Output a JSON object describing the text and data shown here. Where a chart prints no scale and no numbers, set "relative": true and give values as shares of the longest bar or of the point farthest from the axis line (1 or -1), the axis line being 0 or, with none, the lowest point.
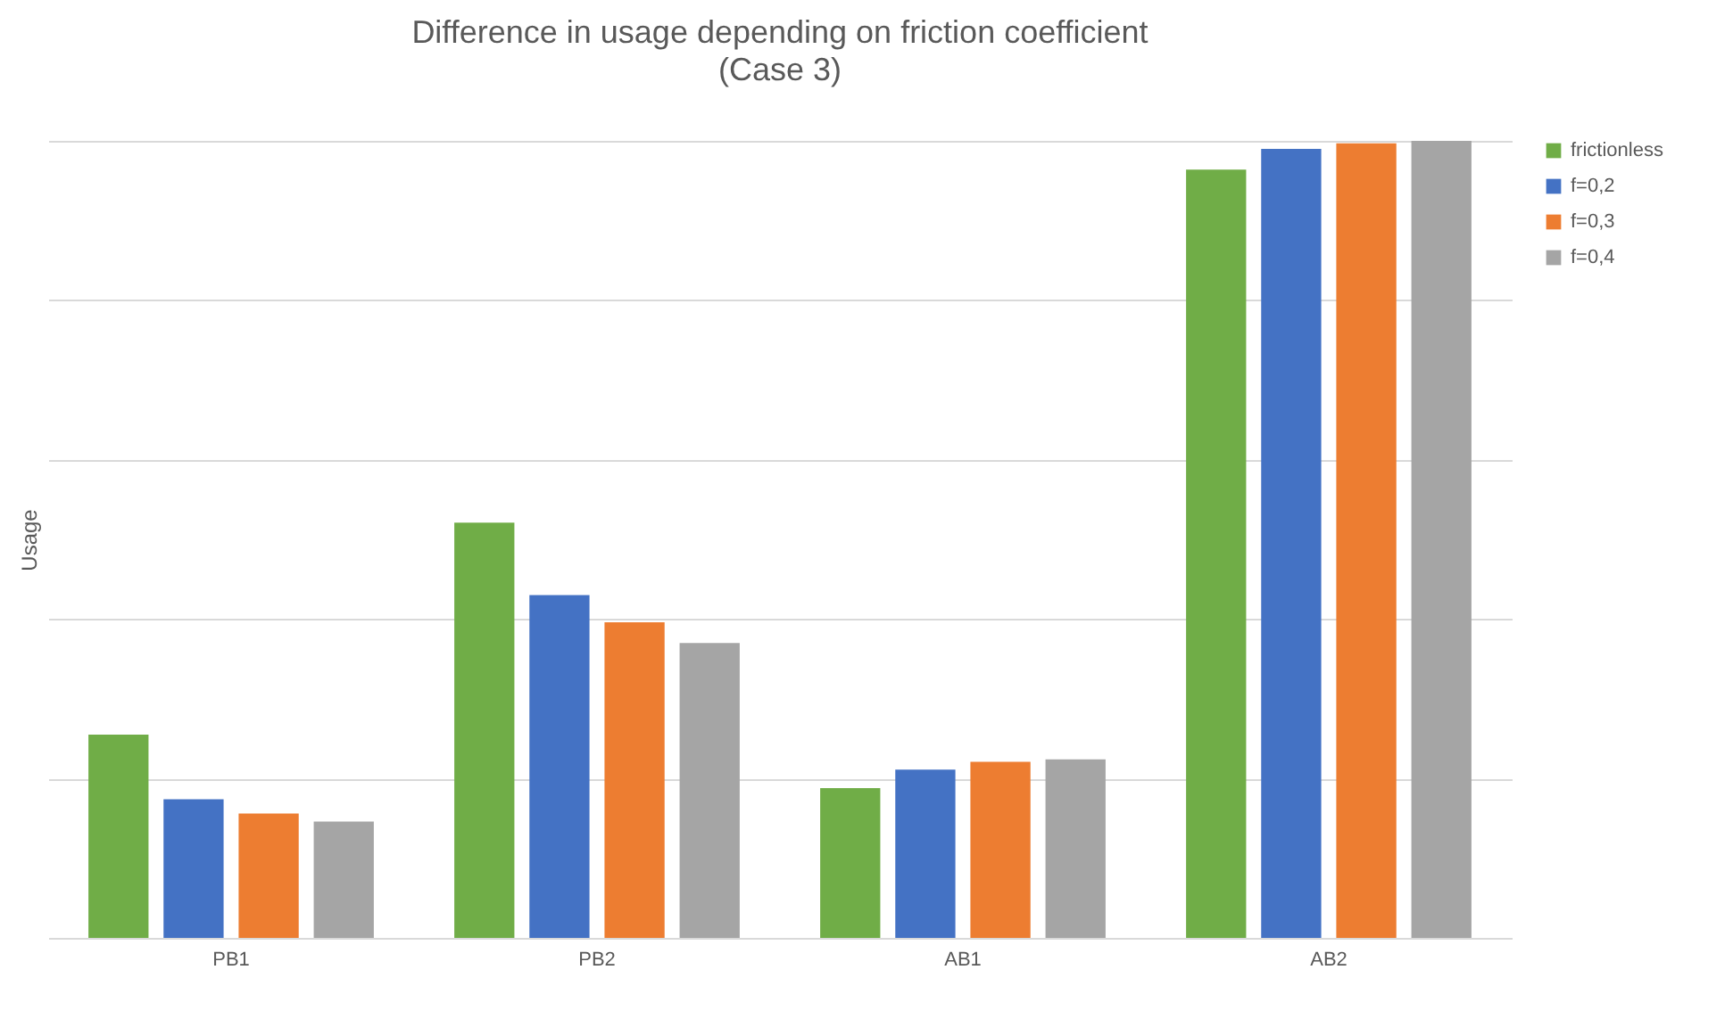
{
  "chart_data": {
    "type": "bar",
    "title": "Difference in usage depending on friction coefficient",
    "subtitle": "(Case 3)",
    "ylabel": "Usage",
    "relative": true,
    "grid": "y",
    "legend": "right",
    "categories": [
      "PB1",
      "PB2",
      "AB1",
      "AB2"
    ],
    "series": [
      {
        "name": "frictionless",
        "color": "#70ad47",
        "values": [
          0.255,
          0.521,
          0.188,
          0.964
        ]
      },
      {
        "name": "f=0,2",
        "color": "#4472c4",
        "values": [
          0.174,
          0.43,
          0.211,
          0.99
        ]
      },
      {
        "name": "f=0,3",
        "color": "#ed7d31",
        "values": [
          0.156,
          0.396,
          0.221,
          0.997
        ]
      },
      {
        "name": "f=0,4",
        "color": "#a5a5a5",
        "values": [
          0.146,
          0.37,
          0.224,
          1
        ]
      }
    ]
  }
}
